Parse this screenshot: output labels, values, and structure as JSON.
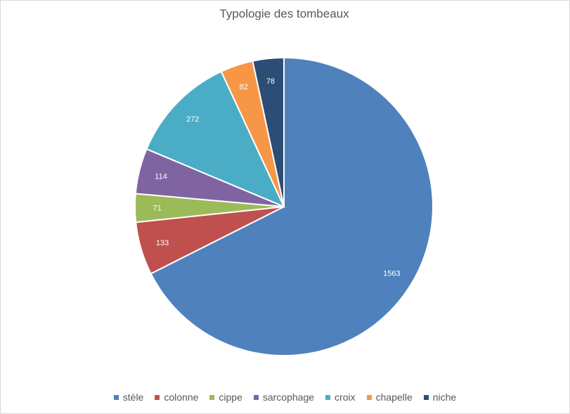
{
  "chart_data": {
    "type": "pie",
    "title": "Typologie des tombeaux",
    "categories": [
      "stèle",
      "colonne",
      "cippe",
      "sarcophage",
      "croix",
      "chapelle",
      "niche"
    ],
    "values": [
      1563,
      133,
      71,
      114,
      272,
      82,
      78
    ],
    "colors": [
      "#4F81BD",
      "#C0504D",
      "#9BBB59",
      "#8064A2",
      "#4BACC6",
      "#F79646",
      "#2C4D75"
    ],
    "data_labels": [
      "1563",
      "133",
      "71",
      "114",
      "272",
      "82",
      "78"
    ],
    "start_angle": "12 o'clock",
    "direction": "clockwise",
    "legend": "bottom"
  }
}
